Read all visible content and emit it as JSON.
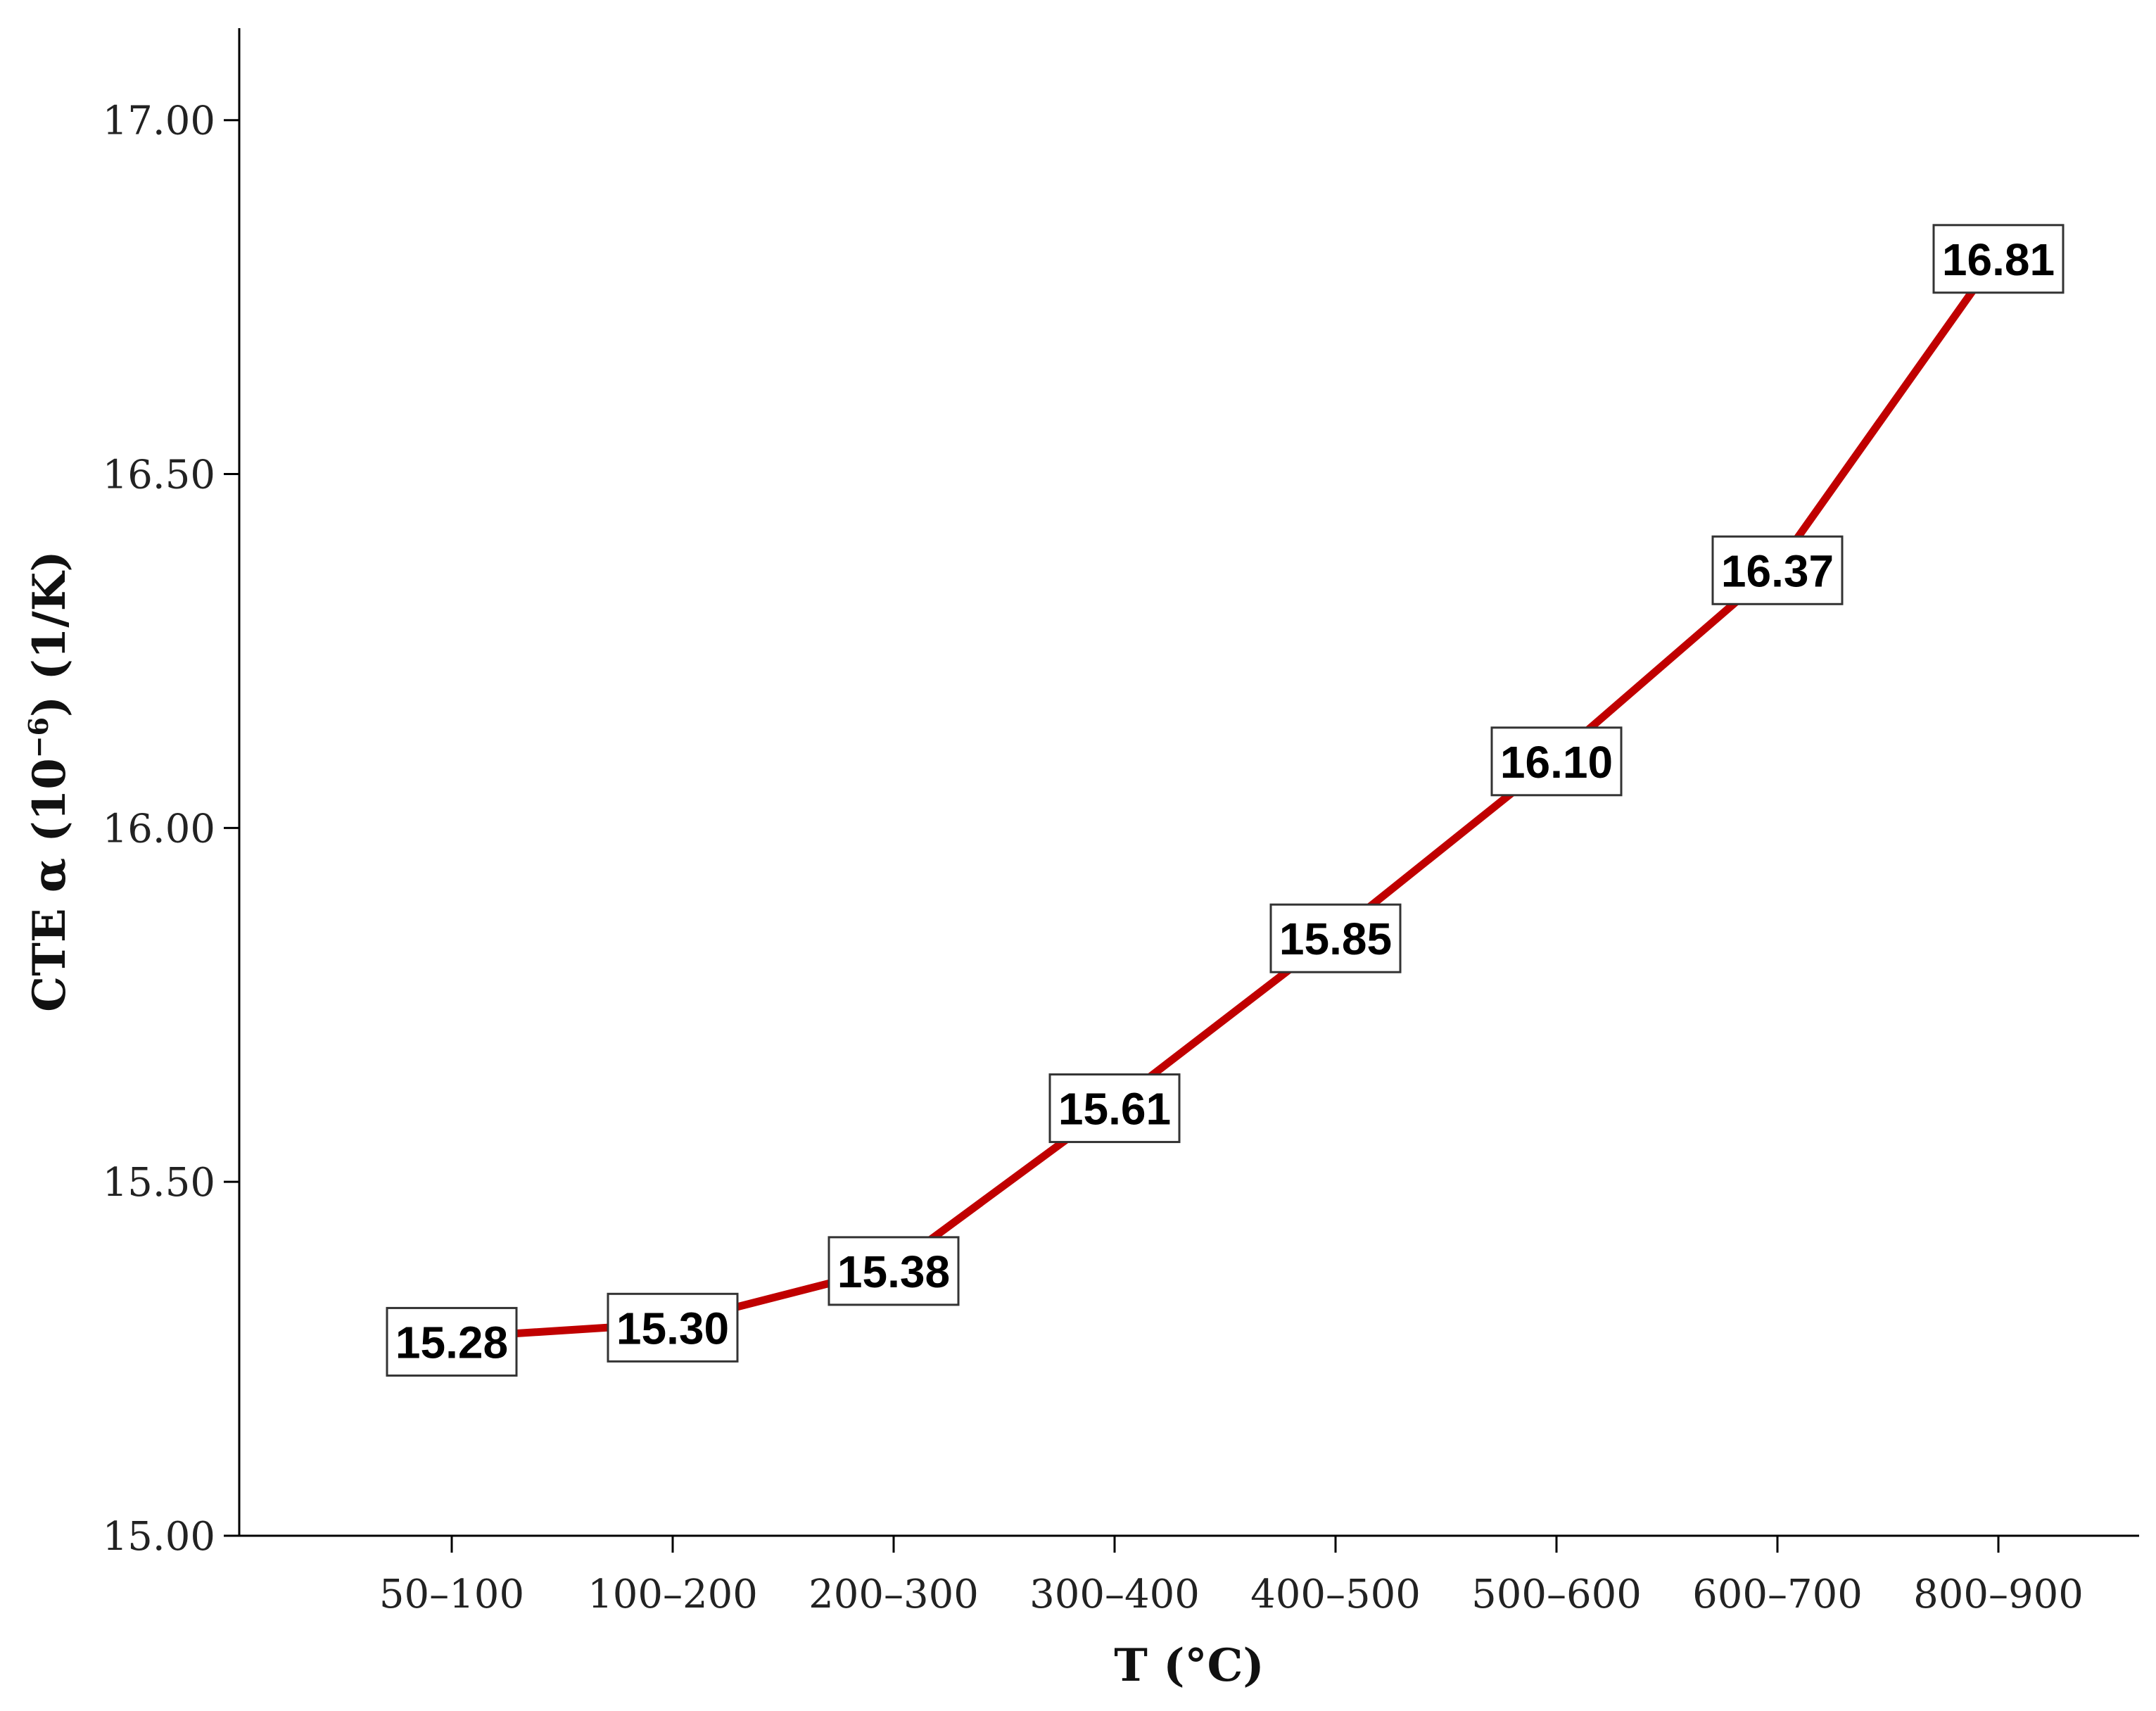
{
  "chart_data": {
    "type": "line",
    "title": "",
    "xlabel": "T (°C)",
    "ylabel": {
      "prefix": "CTE  α (10",
      "exponent": "−6",
      "suffix": ") (1/K)"
    },
    "categories": [
      "50–100",
      "100–200",
      "200–300",
      "300–400",
      "400–500",
      "500–600",
      "600–700",
      "800–900"
    ],
    "values": [
      15.28,
      15.3,
      15.38,
      15.61,
      15.85,
      16.1,
      16.37,
      16.81
    ],
    "data_labels": [
      "15.28",
      "15.30",
      "15.38",
      "15.61",
      "15.85",
      "16.10",
      "16.37",
      "16.81"
    ],
    "ylim": [
      15.0,
      17.13
    ],
    "yticks": [
      15.0,
      15.5,
      16.0,
      16.5,
      17.0
    ],
    "ytick_labels": [
      "15.00",
      "15.50",
      "16.00",
      "16.50",
      "17.00"
    ],
    "grid": false,
    "legend": "none",
    "line_color": "#c00000"
  }
}
